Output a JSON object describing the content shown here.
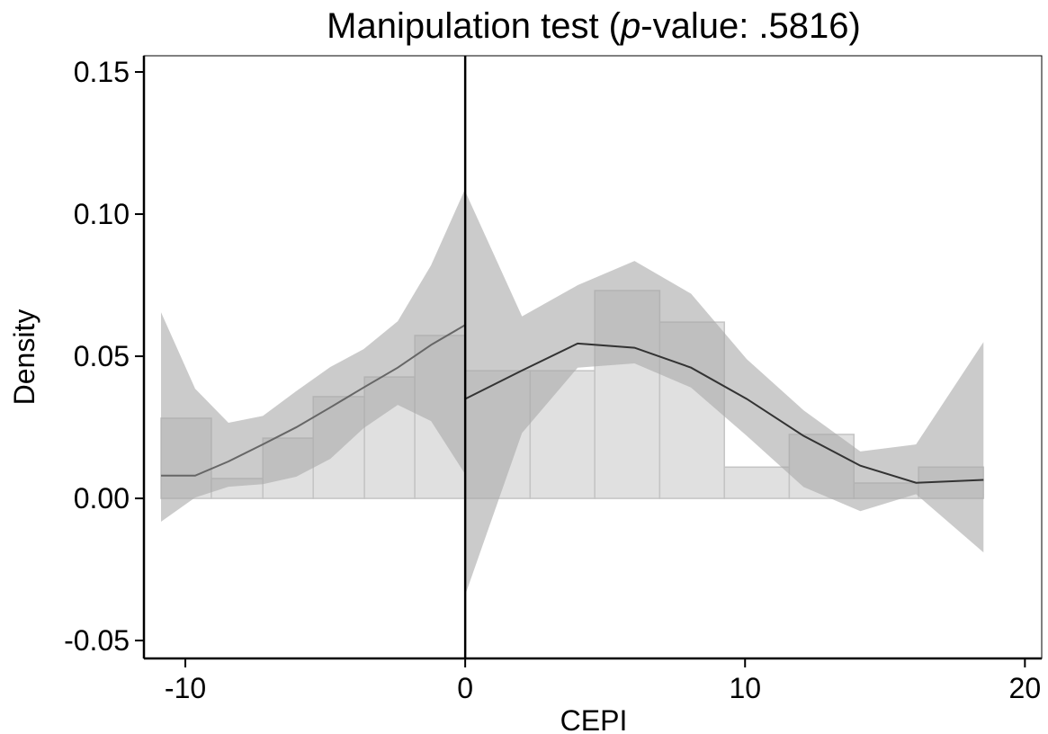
{
  "chart_data": {
    "type": "density_test",
    "title": [
      "Manipulation test (",
      "p",
      "-value: .5816)"
    ],
    "x_label": "CEPI",
    "y_label": "Density",
    "xlim": [
      -11.48,
      20.6
    ],
    "ylim": [
      -0.0563,
      0.1557
    ],
    "xticks": [
      -10,
      0,
      10,
      20
    ],
    "yticks": [
      -0.05,
      {
        "value": 0,
        "label": "0.00"
      },
      0.05,
      {
        "value": 0.1,
        "label": "0.10"
      },
      0.15
    ],
    "cutoff": 0,
    "bar_color": "#e0e0e0",
    "band_color": "#a8a8a8",
    "histograms": [
      {
        "bins": [
          -10.87,
          -9.07,
          -7.23,
          -5.43,
          -3.6,
          -1.8,
          0
        ],
        "values": [
          0.0282,
          0.007,
          0.0212,
          0.0358,
          0.0427,
          0.0573
        ]
      },
      {
        "bins": [
          0,
          2.32,
          4.63,
          6.95,
          9.26,
          11.58,
          13.89,
          16.2,
          18.52
        ],
        "values": [
          0.0449,
          0.0449,
          0.0731,
          0.062,
          0.011,
          0.0225,
          0.0054,
          0.011
        ]
      }
    ],
    "density": [
      {
        "color": "#666666",
        "x": [
          -10.87,
          -9.65,
          -8.46,
          -7.23,
          -6.04,
          -4.82,
          -3.63,
          -2.41,
          -1.22,
          0
        ],
        "values": [
          0.008,
          0.008,
          0.013,
          0.019,
          0.025,
          0.032,
          0.039,
          0.046,
          0.054,
          0.061
        ],
        "upper": [
          0.0655,
          0.0386,
          0.0266,
          0.029,
          0.0377,
          0.0462,
          0.0525,
          0.0623,
          0.082,
          0.1089
        ],
        "lower": [
          -0.0082,
          0.0003,
          0.0041,
          0.005,
          0.0076,
          0.0139,
          0.0247,
          0.0329,
          0.0272,
          0.0085
        ]
      },
      {
        "color": "#333333",
        "x": [
          0,
          2.03,
          4.02,
          6.05,
          8.07,
          10.06,
          12.09,
          14.12,
          16.11,
          18.52
        ],
        "values": [
          0.035,
          0.045,
          0.0545,
          0.053,
          0.046,
          0.035,
          0.022,
          0.0115,
          0.0055,
          0.0065
        ],
        "upper": [
          0.108,
          0.064,
          0.075,
          0.0835,
          0.072,
          0.049,
          0.031,
          0.0165,
          0.019,
          0.055
        ],
        "lower": [
          -0.034,
          0.023,
          0.046,
          0.0475,
          0.039,
          0.022,
          0.004,
          -0.0045,
          0.0015,
          -0.019
        ]
      }
    ]
  }
}
